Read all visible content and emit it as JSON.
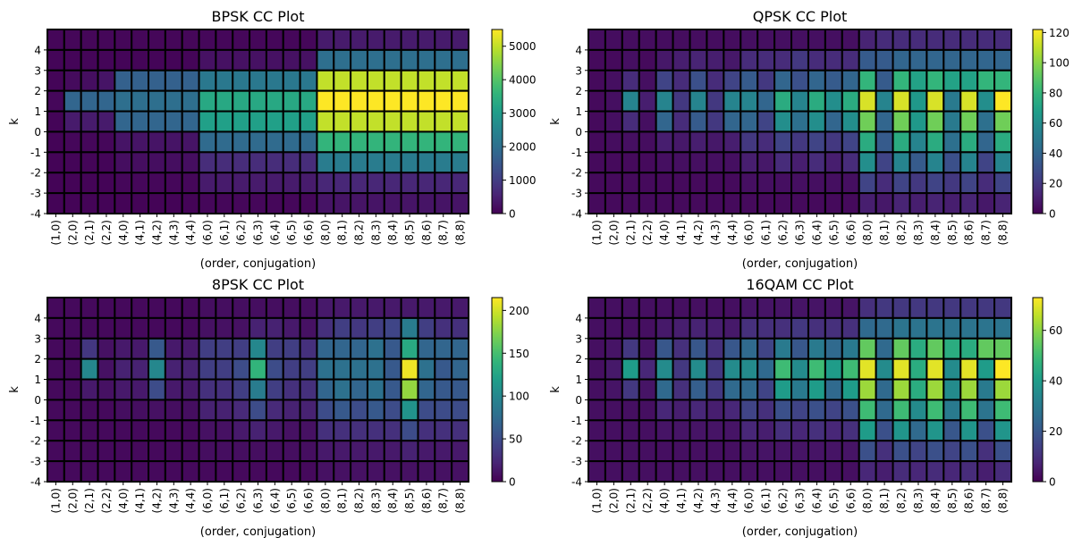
{
  "chart_data": [
    {
      "type": "heatmap",
      "title": "BPSK CC Plot",
      "xlabel": "(order, conjugation)",
      "ylabel": "k",
      "x_categories": [
        "(1,0)",
        "(2,0)",
        "(2,1)",
        "(2,2)",
        "(4,0)",
        "(4,1)",
        "(4,2)",
        "(4,3)",
        "(4,4)",
        "(6,0)",
        "(6,1)",
        "(6,2)",
        "(6,3)",
        "(6,4)",
        "(6,5)",
        "(6,6)",
        "(8,0)",
        "(8,1)",
        "(8,2)",
        "(8,3)",
        "(8,4)",
        "(8,5)",
        "(8,6)",
        "(8,7)",
        "(8,8)"
      ],
      "y_categories": [
        "4",
        "3",
        "2",
        "1",
        "0",
        "-1",
        "-2",
        "-3",
        "-4"
      ],
      "colorbar": {
        "ticks": [
          "0",
          "1000",
          "2000",
          "3000",
          "4000",
          "5000"
        ],
        "max": 5500
      },
      "colormap": "viridis",
      "values": [
        [
          80,
          90,
          90,
          90,
          90,
          90,
          90,
          90,
          90,
          100,
          100,
          100,
          100,
          100,
          100,
          100,
          400,
          400,
          400,
          400,
          400,
          400,
          400,
          400,
          400
        ],
        [
          60,
          60,
          60,
          60,
          60,
          60,
          60,
          60,
          60,
          250,
          250,
          250,
          250,
          250,
          250,
          250,
          2000,
          2000,
          2000,
          2000,
          2000,
          2000,
          2000,
          2000,
          2000
        ],
        [
          60,
          150,
          200,
          300,
          1700,
          1700,
          1700,
          1700,
          1700,
          2200,
          2200,
          2200,
          2200,
          2200,
          2200,
          2200,
          5000,
          5000,
          5000,
          5000,
          5000,
          5000,
          5000,
          5000,
          5000
        ],
        [
          100,
          1800,
          1800,
          1800,
          2000,
          2000,
          2000,
          2000,
          2000,
          3300,
          3300,
          3300,
          3300,
          3300,
          3300,
          3300,
          5500,
          5500,
          5500,
          5500,
          5500,
          5500,
          5500,
          5500,
          5500
        ],
        [
          60,
          400,
          400,
          400,
          1800,
          1800,
          1800,
          1800,
          1800,
          3100,
          3100,
          3100,
          3100,
          3100,
          3100,
          3100,
          5000,
          5000,
          5000,
          5000,
          5000,
          5000,
          5000,
          5000,
          5000
        ],
        [
          50,
          100,
          100,
          100,
          300,
          300,
          300,
          300,
          300,
          1900,
          1900,
          1900,
          1900,
          1900,
          1900,
          1900,
          3600,
          3600,
          3600,
          3600,
          3600,
          3600,
          3600,
          3600,
          3600
        ],
        [
          50,
          60,
          60,
          60,
          200,
          200,
          200,
          200,
          200,
          700,
          700,
          700,
          700,
          700,
          700,
          700,
          2300,
          2300,
          2300,
          2300,
          2300,
          2300,
          2300,
          2300,
          2300
        ],
        [
          50,
          50,
          50,
          50,
          100,
          100,
          100,
          100,
          100,
          400,
          400,
          400,
          400,
          400,
          400,
          400,
          600,
          600,
          600,
          600,
          600,
          600,
          600,
          600,
          600
        ],
        [
          50,
          50,
          50,
          50,
          50,
          50,
          50,
          50,
          50,
          100,
          100,
          100,
          100,
          100,
          100,
          100,
          300,
          300,
          300,
          300,
          300,
          300,
          300,
          300,
          300
        ]
      ]
    },
    {
      "type": "heatmap",
      "title": "QPSK CC Plot",
      "xlabel": "(order, conjugation)",
      "ylabel": "k",
      "x_categories": [
        "(1,0)",
        "(2,0)",
        "(2,1)",
        "(2,2)",
        "(4,0)",
        "(4,1)",
        "(4,2)",
        "(4,3)",
        "(4,4)",
        "(6,0)",
        "(6,1)",
        "(6,2)",
        "(6,3)",
        "(6,4)",
        "(6,5)",
        "(6,6)",
        "(8,0)",
        "(8,1)",
        "(8,2)",
        "(8,3)",
        "(8,4)",
        "(8,5)",
        "(8,6)",
        "(8,7)",
        "(8,8)"
      ],
      "y_categories": [
        "4",
        "3",
        "2",
        "1",
        "0",
        "-1",
        "-2",
        "-3",
        "-4"
      ],
      "colorbar": {
        "ticks": [
          "0",
          "20",
          "40",
          "60",
          "80",
          "100",
          "120"
        ],
        "max": 122
      },
      "colormap": "viridis",
      "values": [
        [
          4,
          4,
          4,
          4,
          4,
          4,
          4,
          4,
          4,
          5,
          5,
          5,
          5,
          5,
          5,
          5,
          12,
          15,
          15,
          15,
          15,
          15,
          15,
          15,
          15
        ],
        [
          3,
          3,
          5,
          3,
          8,
          10,
          12,
          10,
          8,
          15,
          15,
          15,
          20,
          15,
          15,
          15,
          35,
          35,
          40,
          40,
          40,
          40,
          40,
          40,
          40
        ],
        [
          3,
          5,
          15,
          5,
          25,
          15,
          30,
          15,
          25,
          35,
          20,
          40,
          30,
          40,
          35,
          40,
          80,
          35,
          80,
          70,
          80,
          70,
          70,
          80,
          80
        ],
        [
          3,
          5,
          55,
          10,
          55,
          20,
          55,
          20,
          55,
          55,
          40,
          75,
          55,
          75,
          60,
          75,
          115,
          55,
          115,
          65,
          115,
          50,
          115,
          60,
          122
        ],
        [
          3,
          5,
          15,
          5,
          40,
          15,
          35,
          20,
          40,
          40,
          25,
          60,
          45,
          60,
          40,
          60,
          95,
          40,
          95,
          65,
          95,
          50,
          95,
          45,
          95
        ],
        [
          3,
          4,
          5,
          4,
          10,
          8,
          10,
          8,
          10,
          20,
          15,
          25,
          20,
          25,
          20,
          25,
          75,
          35,
          75,
          55,
          75,
          45,
          75,
          40,
          75
        ],
        [
          3,
          3,
          3,
          3,
          5,
          5,
          5,
          5,
          5,
          10,
          8,
          15,
          10,
          15,
          10,
          15,
          60,
          25,
          55,
          35,
          55,
          30,
          55,
          25,
          55
        ],
        [
          3,
          3,
          3,
          3,
          3,
          3,
          3,
          3,
          3,
          5,
          5,
          5,
          5,
          5,
          5,
          5,
          25,
          15,
          25,
          20,
          25,
          20,
          25,
          15,
          25
        ],
        [
          3,
          3,
          3,
          3,
          3,
          3,
          3,
          3,
          3,
          3,
          3,
          3,
          3,
          3,
          3,
          3,
          10,
          8,
          12,
          10,
          12,
          10,
          12,
          8,
          12
        ]
      ]
    },
    {
      "type": "heatmap",
      "title": "8PSK CC Plot",
      "xlabel": "(order, conjugation)",
      "ylabel": "k",
      "x_categories": [
        "(1,0)",
        "(2,0)",
        "(2,1)",
        "(2,2)",
        "(4,0)",
        "(4,1)",
        "(4,2)",
        "(4,3)",
        "(4,4)",
        "(6,0)",
        "(6,1)",
        "(6,2)",
        "(6,3)",
        "(6,4)",
        "(6,5)",
        "(6,6)",
        "(8,0)",
        "(8,1)",
        "(8,2)",
        "(8,3)",
        "(8,4)",
        "(8,5)",
        "(8,6)",
        "(8,7)",
        "(8,8)"
      ],
      "y_categories": [
        "4",
        "3",
        "2",
        "1",
        "0",
        "-1",
        "-2",
        "-3",
        "-4"
      ],
      "colorbar": {
        "ticks": [
          "0",
          "50",
          "100",
          "150",
          "200"
        ],
        "max": 215
      },
      "colormap": "viridis",
      "values": [
        [
          5,
          5,
          5,
          5,
          5,
          5,
          5,
          5,
          5,
          8,
          8,
          8,
          8,
          8,
          8,
          8,
          15,
          15,
          15,
          15,
          15,
          15,
          15,
          15,
          15
        ],
        [
          5,
          5,
          5,
          5,
          5,
          5,
          5,
          5,
          5,
          10,
          10,
          10,
          20,
          20,
          15,
          10,
          30,
          40,
          35,
          40,
          45,
          90,
          40,
          30,
          30
        ],
        [
          5,
          5,
          35,
          10,
          15,
          15,
          60,
          15,
          15,
          40,
          40,
          40,
          100,
          40,
          40,
          30,
          70,
          70,
          70,
          80,
          60,
          130,
          70,
          70,
          70
        ],
        [
          5,
          5,
          100,
          10,
          20,
          20,
          100,
          20,
          20,
          40,
          40,
          50,
          140,
          50,
          40,
          40,
          80,
          80,
          80,
          80,
          60,
          210,
          80,
          60,
          70
        ],
        [
          5,
          5,
          15,
          10,
          15,
          15,
          50,
          15,
          15,
          30,
          30,
          40,
          90,
          40,
          30,
          30,
          70,
          80,
          70,
          80,
          60,
          180,
          70,
          60,
          60
        ],
        [
          5,
          5,
          5,
          5,
          8,
          8,
          10,
          8,
          8,
          20,
          20,
          25,
          50,
          25,
          20,
          20,
          50,
          60,
          50,
          60,
          50,
          110,
          50,
          50,
          50
        ],
        [
          5,
          5,
          5,
          5,
          5,
          5,
          5,
          5,
          5,
          10,
          10,
          15,
          20,
          15,
          10,
          10,
          30,
          30,
          30,
          30,
          30,
          50,
          30,
          30,
          30
        ],
        [
          5,
          5,
          5,
          5,
          5,
          5,
          5,
          5,
          5,
          8,
          8,
          8,
          8,
          8,
          8,
          8,
          15,
          15,
          15,
          15,
          15,
          20,
          15,
          15,
          15
        ],
        [
          5,
          5,
          5,
          5,
          5,
          5,
          5,
          5,
          5,
          5,
          5,
          5,
          5,
          5,
          5,
          5,
          10,
          10,
          10,
          10,
          10,
          10,
          10,
          10,
          10
        ]
      ]
    },
    {
      "type": "heatmap",
      "title": "16QAM CC Plot",
      "xlabel": "(order, conjugation)",
      "ylabel": "k",
      "x_categories": [
        "(1,0)",
        "(2,0)",
        "(2,1)",
        "(2,2)",
        "(4,0)",
        "(4,1)",
        "(4,2)",
        "(4,3)",
        "(4,4)",
        "(6,0)",
        "(6,1)",
        "(6,2)",
        "(6,3)",
        "(6,4)",
        "(6,5)",
        "(6,6)",
        "(8,0)",
        "(8,1)",
        "(8,2)",
        "(8,3)",
        "(8,4)",
        "(8,5)",
        "(8,6)",
        "(8,7)",
        "(8,8)"
      ],
      "y_categories": [
        "4",
        "3",
        "2",
        "1",
        "0",
        "-1",
        "-2",
        "-3",
        "-4"
      ],
      "colorbar": {
        "ticks": [
          "0",
          "20",
          "40",
          "60"
        ],
        "max": 73
      },
      "colormap": "viridis",
      "values": [
        [
          3,
          3,
          3,
          3,
          3,
          3,
          3,
          3,
          3,
          4,
          4,
          4,
          4,
          4,
          4,
          4,
          10,
          12,
          12,
          12,
          12,
          12,
          12,
          12,
          12
        ],
        [
          3,
          3,
          3,
          3,
          5,
          6,
          7,
          6,
          5,
          10,
          10,
          10,
          12,
          10,
          10,
          10,
          25,
          25,
          28,
          28,
          28,
          28,
          28,
          28,
          28
        ],
        [
          3,
          4,
          12,
          4,
          20,
          10,
          20,
          10,
          20,
          25,
          15,
          30,
          20,
          30,
          25,
          30,
          55,
          25,
          55,
          45,
          55,
          45,
          45,
          55,
          55
        ],
        [
          3,
          5,
          40,
          8,
          35,
          12,
          35,
          12,
          35,
          35,
          25,
          50,
          35,
          50,
          40,
          50,
          70,
          35,
          70,
          45,
          70,
          35,
          70,
          40,
          73
        ],
        [
          3,
          4,
          12,
          4,
          25,
          10,
          22,
          12,
          25,
          25,
          15,
          40,
          30,
          40,
          25,
          40,
          62,
          25,
          62,
          45,
          62,
          35,
          62,
          30,
          62
        ],
        [
          3,
          3,
          3,
          3,
          8,
          6,
          8,
          6,
          8,
          15,
          10,
          18,
          15,
          18,
          15,
          18,
          50,
          25,
          50,
          35,
          50,
          30,
          50,
          28,
          50
        ],
        [
          3,
          3,
          3,
          3,
          4,
          4,
          4,
          4,
          4,
          8,
          6,
          10,
          8,
          10,
          8,
          10,
          40,
          18,
          38,
          25,
          38,
          20,
          38,
          18,
          38
        ],
        [
          3,
          3,
          3,
          3,
          3,
          3,
          3,
          3,
          3,
          4,
          4,
          4,
          4,
          4,
          4,
          4,
          18,
          10,
          18,
          15,
          18,
          15,
          18,
          10,
          18
        ],
        [
          3,
          3,
          3,
          3,
          3,
          3,
          3,
          3,
          3,
          3,
          3,
          3,
          3,
          3,
          3,
          3,
          8,
          6,
          9,
          8,
          9,
          8,
          9,
          6,
          9
        ]
      ]
    }
  ]
}
